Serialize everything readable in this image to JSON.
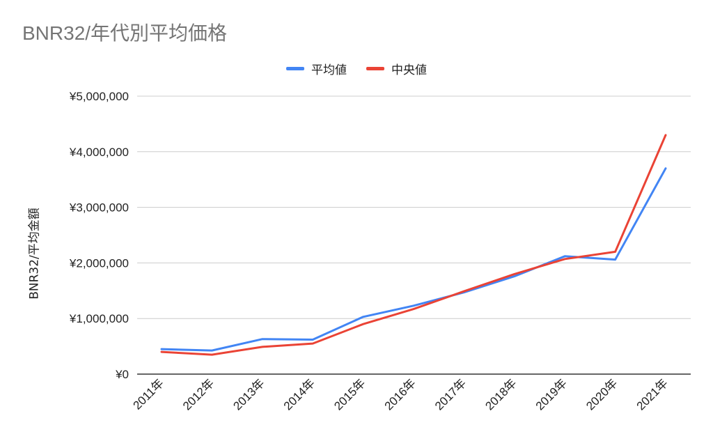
{
  "chart_data": {
    "type": "line",
    "title": "BNR32/年代別平均価格",
    "ylabel": "BNR32/平均金額",
    "xlabel": "",
    "categories": [
      "2011年",
      "2012年",
      "2013年",
      "2014年",
      "2015年",
      "2016年",
      "2017年",
      "2018年",
      "2019年",
      "2020年",
      "2021年"
    ],
    "series": [
      {
        "name": "平均値",
        "color": "#4285f4",
        "values": [
          450000,
          425000,
          630000,
          620000,
          1030000,
          1230000,
          1470000,
          1760000,
          2120000,
          2060000,
          3700000
        ]
      },
      {
        "name": "中央値",
        "color": "#ea4335",
        "values": [
          400000,
          350000,
          490000,
          550000,
          900000,
          1170000,
          1490000,
          1800000,
          2070000,
          2200000,
          4300000
        ]
      }
    ],
    "ylim": [
      0,
      5000000
    ],
    "yticks": [
      "¥0",
      "¥1,000,000",
      "¥2,000,000",
      "¥3,000,000",
      "¥4,000,000",
      "¥5,000,000"
    ],
    "ytick_values": [
      0,
      1000000,
      2000000,
      3000000,
      4000000,
      5000000
    ],
    "grid": true,
    "legend_position": "top-center"
  }
}
